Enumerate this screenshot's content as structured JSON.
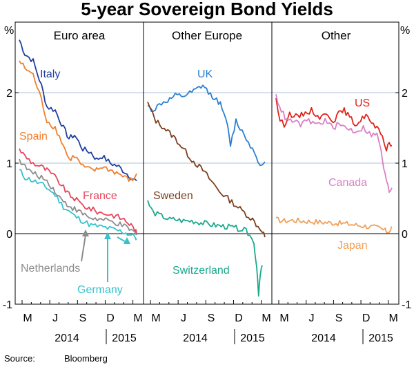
{
  "chart_data": {
    "type": "line",
    "title": "5-year Sovereign Bond Yields",
    "y_unit_left": "%",
    "y_unit_right": "%",
    "ylim": [
      -1,
      3
    ],
    "y_ticks": [
      -1,
      0,
      1,
      2
    ],
    "y_tick_labels": [
      "-1",
      "0",
      "1",
      "2"
    ],
    "month_labels": [
      "M",
      "J",
      "S",
      "D",
      "M"
    ],
    "year_labels": [
      "2014",
      "2015"
    ],
    "source_label": "Source:",
    "source_value": "Bloomberg",
    "colors": {
      "italy": "#1f3fa0",
      "spain": "#f07f2e",
      "france": "#e8445a",
      "netherlands": "#8c8c8c",
      "germany": "#35c2cc",
      "uk": "#2b7fd1",
      "sweden": "#7a3f1e",
      "switzerland": "#19a98c",
      "us": "#e2231a",
      "canada": "#d97fc6",
      "japan": "#f0a05a"
    },
    "panels": [
      {
        "title": "Euro area",
        "series": [
          {
            "name": "Italy",
            "key": "italy",
            "values": [
              [
                0.0,
                2.75
              ],
              [
                0.2,
                2.55
              ],
              [
                0.5,
                2.45
              ],
              [
                0.8,
                2.1
              ],
              [
                1.0,
                1.8
              ],
              [
                1.3,
                1.75
              ],
              [
                1.6,
                1.5
              ],
              [
                1.8,
                1.35
              ],
              [
                2.0,
                1.4
              ],
              [
                2.3,
                1.2
              ],
              [
                2.6,
                1.15
              ],
              [
                2.8,
                1.05
              ],
              [
                3.0,
                1.1
              ],
              [
                3.3,
                1.0
              ],
              [
                3.6,
                0.95
              ],
              [
                3.9,
                0.85
              ],
              [
                4.1,
                0.78
              ],
              [
                4.25,
                0.75
              ]
            ]
          },
          {
            "name": "Spain",
            "key": "spain",
            "values": [
              [
                0.0,
                2.45
              ],
              [
                0.2,
                2.35
              ],
              [
                0.5,
                2.25
              ],
              [
                0.8,
                1.9
              ],
              [
                1.0,
                1.6
              ],
              [
                1.3,
                1.5
              ],
              [
                1.6,
                1.25
              ],
              [
                1.8,
                1.05
              ],
              [
                2.0,
                1.1
              ],
              [
                2.3,
                0.95
              ],
              [
                2.6,
                0.9
              ],
              [
                2.8,
                0.9
              ],
              [
                3.0,
                0.95
              ],
              [
                3.3,
                0.9
              ],
              [
                3.6,
                0.85
              ],
              [
                3.9,
                0.78
              ],
              [
                4.1,
                0.75
              ],
              [
                4.25,
                0.85
              ]
            ]
          },
          {
            "name": "France",
            "key": "france",
            "values": [
              [
                0.0,
                1.2
              ],
              [
                0.2,
                1.1
              ],
              [
                0.5,
                1.0
              ],
              [
                0.8,
                0.95
              ],
              [
                1.0,
                0.9
              ],
              [
                1.3,
                0.8
              ],
              [
                1.6,
                0.65
              ],
              [
                1.8,
                0.55
              ],
              [
                2.0,
                0.5
              ],
              [
                2.3,
                0.4
              ],
              [
                2.6,
                0.35
              ],
              [
                2.9,
                0.3
              ],
              [
                3.2,
                0.28
              ],
              [
                3.5,
                0.25
              ],
              [
                3.8,
                0.2
              ],
              [
                4.05,
                0.12
              ],
              [
                4.2,
                0.05
              ],
              [
                4.25,
                0.0
              ]
            ]
          },
          {
            "name": "Netherlands",
            "key": "netherlands",
            "values": [
              [
                0.0,
                1.05
              ],
              [
                0.2,
                0.95
              ],
              [
                0.5,
                0.85
              ],
              [
                0.8,
                0.8
              ],
              [
                1.0,
                0.75
              ],
              [
                1.3,
                0.6
              ],
              [
                1.6,
                0.45
              ],
              [
                1.8,
                0.4
              ],
              [
                2.0,
                0.35
              ],
              [
                2.3,
                0.28
              ],
              [
                2.6,
                0.22
              ],
              [
                2.9,
                0.2
              ],
              [
                3.2,
                0.18
              ],
              [
                3.5,
                0.15
              ],
              [
                3.8,
                0.1
              ],
              [
                4.05,
                0.05
              ],
              [
                4.2,
                0.0
              ],
              [
                4.25,
                -0.02
              ]
            ]
          },
          {
            "name": "Germany",
            "key": "germany",
            "values": [
              [
                0.0,
                0.9
              ],
              [
                0.2,
                0.8
              ],
              [
                0.5,
                0.75
              ],
              [
                0.8,
                0.7
              ],
              [
                1.0,
                0.65
              ],
              [
                1.3,
                0.55
              ],
              [
                1.6,
                0.38
              ],
              [
                1.8,
                0.32
              ],
              [
                2.0,
                0.25
              ],
              [
                2.3,
                0.18
              ],
              [
                2.6,
                0.12
              ],
              [
                2.9,
                0.1
              ],
              [
                3.2,
                0.08
              ],
              [
                3.5,
                0.05
              ],
              [
                3.8,
                0.02
              ],
              [
                4.05,
                -0.02
              ],
              [
                4.2,
                -0.05
              ],
              [
                4.25,
                -0.07
              ]
            ]
          }
        ]
      },
      {
        "title": "Other Europe",
        "series": [
          {
            "name": "UK",
            "key": "uk",
            "values": [
              [
                0.0,
                1.8
              ],
              [
                0.2,
                1.75
              ],
              [
                0.5,
                1.85
              ],
              [
                0.8,
                1.9
              ],
              [
                1.0,
                1.95
              ],
              [
                1.3,
                1.95
              ],
              [
                1.6,
                2.0
              ],
              [
                1.8,
                2.05
              ],
              [
                2.0,
                2.1
              ],
              [
                2.2,
                2.0
              ],
              [
                2.5,
                1.9
              ],
              [
                2.7,
                1.8
              ],
              [
                2.9,
                1.5
              ],
              [
                3.0,
                1.25
              ],
              [
                3.2,
                1.6
              ],
              [
                3.5,
                1.4
              ],
              [
                3.8,
                1.2
              ],
              [
                4.0,
                1.05
              ],
              [
                4.15,
                0.95
              ],
              [
                4.25,
                1.02
              ]
            ]
          },
          {
            "name": "Sweden",
            "key": "sweden",
            "values": [
              [
                0.0,
                1.85
              ],
              [
                0.3,
                1.6
              ],
              [
                0.6,
                1.5
              ],
              [
                1.0,
                1.35
              ],
              [
                1.3,
                1.2
              ],
              [
                1.6,
                1.05
              ],
              [
                2.0,
                0.9
              ],
              [
                2.3,
                0.75
              ],
              [
                2.6,
                0.6
              ],
              [
                2.9,
                0.5
              ],
              [
                3.2,
                0.4
              ],
              [
                3.5,
                0.3
              ],
              [
                3.8,
                0.2
              ],
              [
                4.0,
                0.1
              ],
              [
                4.15,
                0.05
              ],
              [
                4.25,
                -0.05
              ]
            ]
          },
          {
            "name": "Switzerland",
            "key": "switzerland",
            "values": [
              [
                0.0,
                0.45
              ],
              [
                0.2,
                0.3
              ],
              [
                0.5,
                0.25
              ],
              [
                0.8,
                0.2
              ],
              [
                1.0,
                0.2
              ],
              [
                1.3,
                0.18
              ],
              [
                1.6,
                0.18
              ],
              [
                2.0,
                0.15
              ],
              [
                2.4,
                0.12
              ],
              [
                2.8,
                0.1
              ],
              [
                3.2,
                0.08
              ],
              [
                3.5,
                0.05
              ],
              [
                3.7,
                0.0
              ],
              [
                3.85,
                -0.15
              ],
              [
                3.95,
                -0.45
              ],
              [
                4.02,
                -0.85
              ],
              [
                4.08,
                -0.55
              ],
              [
                4.15,
                -0.45
              ]
            ]
          }
        ]
      },
      {
        "title": "Other",
        "series": [
          {
            "name": "US",
            "key": "us",
            "values": [
              [
                0.0,
                1.9
              ],
              [
                0.15,
                1.6
              ],
              [
                0.3,
                1.55
              ],
              [
                0.5,
                1.7
              ],
              [
                0.8,
                1.65
              ],
              [
                1.0,
                1.7
              ],
              [
                1.3,
                1.75
              ],
              [
                1.6,
                1.65
              ],
              [
                1.9,
                1.7
              ],
              [
                2.1,
                1.6
              ],
              [
                2.3,
                1.7
              ],
              [
                2.5,
                1.75
              ],
              [
                2.7,
                1.65
              ],
              [
                2.9,
                1.55
              ],
              [
                3.1,
                1.6
              ],
              [
                3.3,
                1.7
              ],
              [
                3.5,
                1.55
              ],
              [
                3.7,
                1.5
              ],
              [
                3.9,
                1.35
              ],
              [
                4.05,
                1.2
              ],
              [
                4.15,
                1.3
              ],
              [
                4.25,
                1.25
              ]
            ]
          },
          {
            "name": "Canada",
            "key": "canada",
            "values": [
              [
                0.0,
                1.95
              ],
              [
                0.2,
                1.75
              ],
              [
                0.4,
                1.6
              ],
              [
                0.6,
                1.6
              ],
              [
                0.9,
                1.55
              ],
              [
                1.2,
                1.6
              ],
              [
                1.5,
                1.55
              ],
              [
                1.8,
                1.6
              ],
              [
                2.1,
                1.5
              ],
              [
                2.3,
                1.55
              ],
              [
                2.6,
                1.5
              ],
              [
                2.9,
                1.45
              ],
              [
                3.2,
                1.5
              ],
              [
                3.5,
                1.4
              ],
              [
                3.7,
                1.4
              ],
              [
                3.85,
                1.2
              ],
              [
                3.95,
                0.9
              ],
              [
                4.05,
                0.75
              ],
              [
                4.15,
                0.6
              ],
              [
                4.25,
                0.65
              ]
            ]
          },
          {
            "name": "Japan",
            "key": "japan",
            "values": [
              [
                0.0,
                0.2
              ],
              [
                0.3,
                0.18
              ],
              [
                0.6,
                0.19
              ],
              [
                1.0,
                0.18
              ],
              [
                1.4,
                0.17
              ],
              [
                1.8,
                0.16
              ],
              [
                2.2,
                0.15
              ],
              [
                2.6,
                0.14
              ],
              [
                3.0,
                0.12
              ],
              [
                3.4,
                0.1
              ],
              [
                3.8,
                0.08
              ],
              [
                4.0,
                0.04
              ],
              [
                4.1,
                0.03
              ],
              [
                4.2,
                0.06
              ],
              [
                4.25,
                0.1
              ]
            ]
          }
        ]
      }
    ]
  }
}
